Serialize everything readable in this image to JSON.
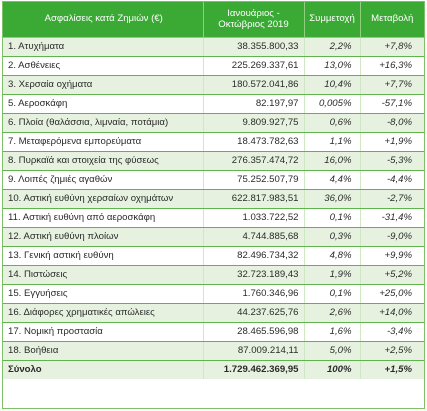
{
  "table": {
    "headers": {
      "category": "Ασφαλίσεις κατά Ζημιών (€)",
      "value_line1": "Ιανουάριος -",
      "value_line2": "Οκτώβριος 2019",
      "share": "Συμμετοχή",
      "change": "Μεταβολή"
    },
    "rows": [
      {
        "category": "1. Ατυχήματα",
        "value": "38.355.800,33",
        "share": "2,2%",
        "change": "+7,8%"
      },
      {
        "category": "2. Ασθένειες",
        "value": "225.269.337,61",
        "share": "13,0%",
        "change": "+16,3%"
      },
      {
        "category": "3. Χερσαία οχήματα",
        "value": "180.572.041,86",
        "share": "10,4%",
        "change": "+7,7%"
      },
      {
        "category": "5. Αεροσκάφη",
        "value": "82.197,97",
        "share": "0,005%",
        "change": "-57,1%"
      },
      {
        "category": "6. Πλοία (θαλάσσια, λιμναία, ποτάμια)",
        "value": "9.809.927,75",
        "share": "0,6%",
        "change": "-8,0%"
      },
      {
        "category": "7. Μεταφερόμενα εμπορεύματα",
        "value": "18.473.782,63",
        "share": "1,1%",
        "change": "+1,9%"
      },
      {
        "category": "8. Πυρκαϊά και στοιχεία της φύσεως",
        "value": "276.357.474,72",
        "share": "16,0%",
        "change": "-5,3%"
      },
      {
        "category": "9. Λοιπές ζημιές αγαθών",
        "value": "75.252.507,79",
        "share": "4,4%",
        "change": "-4,4%"
      },
      {
        "category": "10. Αστική ευθύνη χερσαίων οχημάτων",
        "value": "622.817.983,51",
        "share": "36,0%",
        "change": "-2,7%"
      },
      {
        "category": "11. Αστική ευθύνη από αεροσκάφη",
        "value": "1.033.722,52",
        "share": "0,1%",
        "change": "-31,4%"
      },
      {
        "category": "12. Αστική ευθύνη πλοίων",
        "value": "4.744.885,68",
        "share": "0,3%",
        "change": "-9,0%"
      },
      {
        "category": "13. Γενική αστική ευθύνη",
        "value": "82.496.734,32",
        "share": "4,8%",
        "change": "+9,9%"
      },
      {
        "category": "14. Πιστώσεις",
        "value": "32.723.189,43",
        "share": "1,9%",
        "change": "+5,2%"
      },
      {
        "category": "15. Εγγυήσεις",
        "value": "1.760.346,96",
        "share": "0,1%",
        "change": "+25,0%"
      },
      {
        "category": "16. Διάφορες χρηματικές απώλειες",
        "value": "44.237.625,76",
        "share": "2,6%",
        "change": "+14,0%"
      },
      {
        "category": "17. Νομική προστασία",
        "value": "28.465.596,98",
        "share": "1,6%",
        "change": "-3,4%"
      },
      {
        "category": "18. Βοήθεια",
        "value": "87.009.214,11",
        "share": "5,0%",
        "change": "+2,5%"
      }
    ],
    "total": {
      "category": "Σύνολο",
      "value": "1.729.462.369,95",
      "share": "100%",
      "change": "+1,5%"
    }
  },
  "colors": {
    "header_bg": "#3aaa35",
    "stripe_bg": "#e6f2df",
    "row_border": "#5fb44d"
  }
}
